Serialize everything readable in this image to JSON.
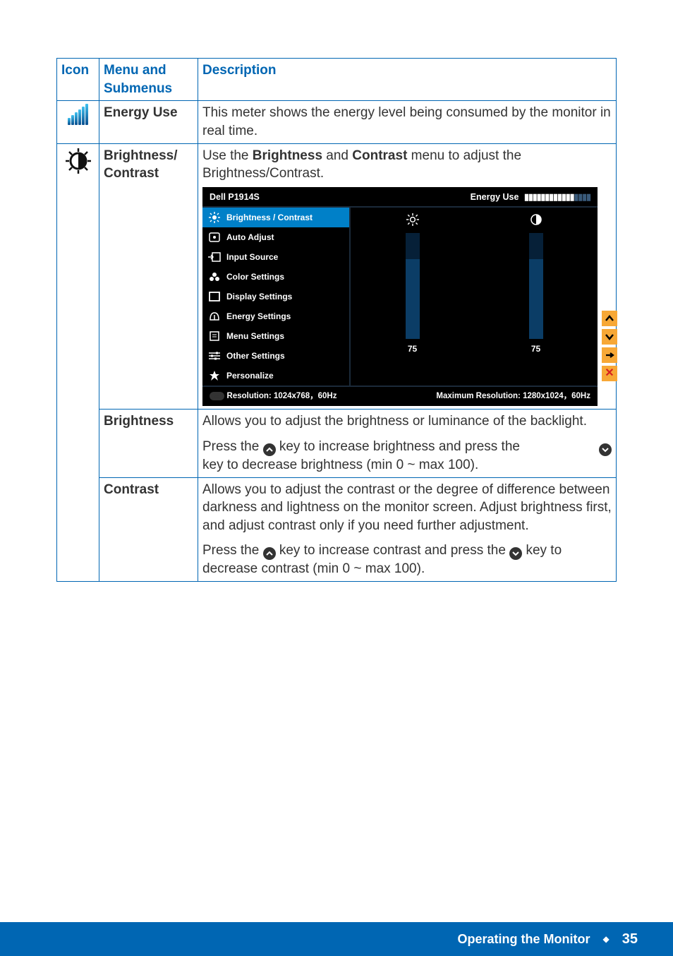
{
  "table": {
    "headers": {
      "icon": "Icon",
      "menu": "Menu and Submenus",
      "desc": "Description"
    },
    "rows": {
      "energy_use": {
        "menu": "Energy Use",
        "desc": "This meter shows the energy level being consumed by the monitor in real time."
      },
      "brightness_contrast": {
        "menu": "Brightness/\nContrast",
        "desc_pre": "Use the ",
        "desc_b1": "Brightness",
        "desc_mid": " and ",
        "desc_b2": "Contrast",
        "desc_post": " menu to adjust the Brightness/Contrast."
      },
      "brightness": {
        "menu": "Brightness",
        "p1": "Allows you to adjust the brightness or luminance of the backlight.",
        "p2a": "Press the ",
        "p2b": " key to increase brightness and press the ",
        "p2c": " key to decrease brightness (min 0 ~ max 100)."
      },
      "contrast": {
        "menu": "Contrast",
        "p1": "Allows you to adjust the contrast or the degree of difference between darkness and lightness on the monitor screen. Adjust brightness first, and adjust contrast only if you need further adjustment.",
        "p2a": "Press the ",
        "p2b": "  key to increase contrast and press the ",
        "p2c": " key to decrease contrast (min 0 ~ max 100)."
      }
    }
  },
  "osd": {
    "title": "Dell P1914S",
    "energy_label": "Energy Use",
    "menu_items": [
      "Brightness / Contrast",
      "Auto Adjust",
      "Input Source",
      "Color Settings",
      "Display Settings",
      "Energy Settings",
      "Menu Settings",
      "Other Settings",
      "Personalize"
    ],
    "slider_value": "75",
    "slider_pct": 75,
    "footer_left": "Resolution: 1024x768，60Hz",
    "footer_right": "Maximum Resolution: 1280x1024，60Hz",
    "colors": {
      "active_bg": "#0080c8",
      "side_btn_bg": "#f7a836",
      "side_close": "#d62020"
    }
  },
  "footer": {
    "title": "Operating the Monitor",
    "page": "35"
  },
  "colors": {
    "brand_blue": "#0066b3"
  }
}
